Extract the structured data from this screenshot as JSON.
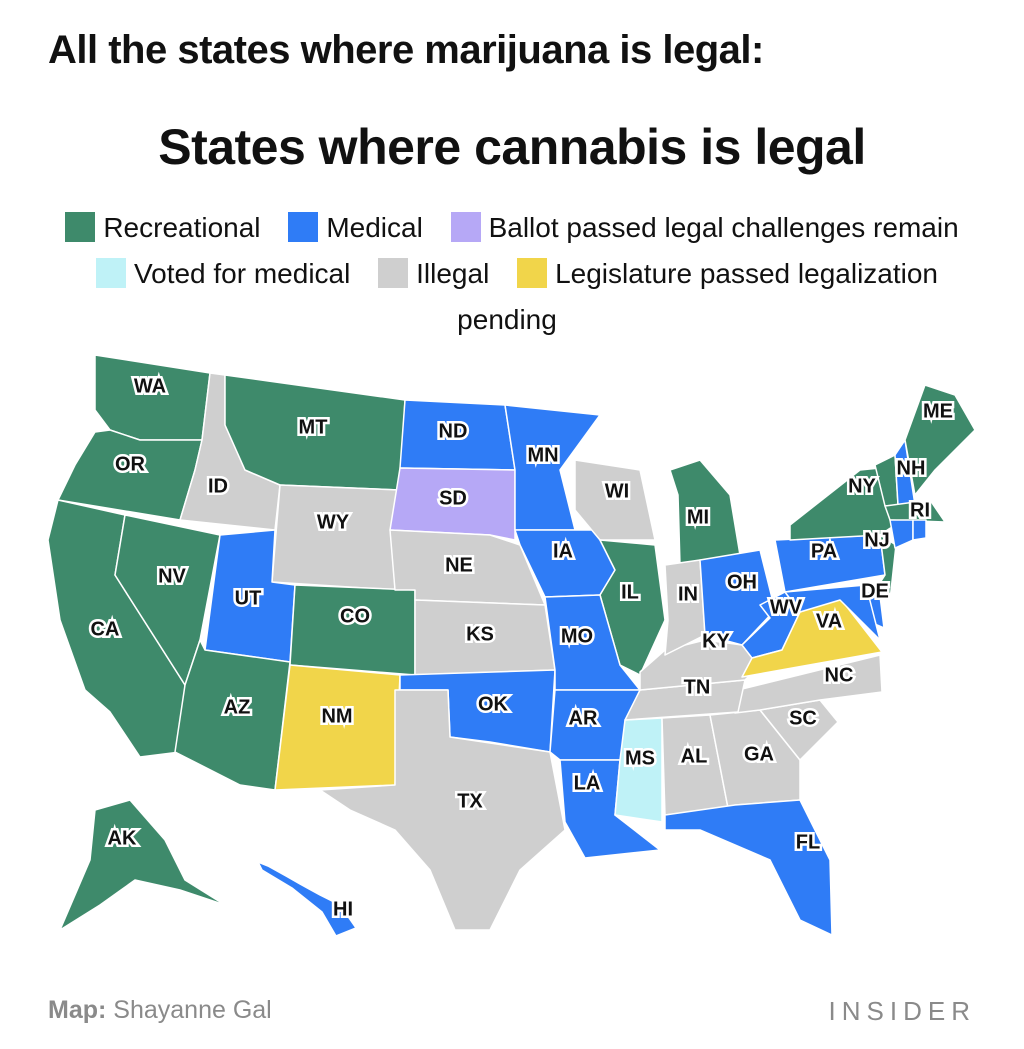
{
  "title": "All the states where marijuana is legal:",
  "subtitle": "States where cannabis is legal",
  "legend": [
    {
      "name": "Recreational",
      "color": "#3e8a6b"
    },
    {
      "name": "Medical",
      "color": "#2f7cf6"
    },
    {
      "name": "Ballot passed legal challenges remain",
      "color": "#b6a8f6"
    },
    {
      "name": "Voted for medical",
      "color": "#bff2f7"
    },
    {
      "name": "Illegal",
      "color": "#cfcfcf"
    },
    {
      "name": "Legislature passed legalization pending",
      "color": "#f1d54a"
    }
  ],
  "states": [
    {
      "label": "WA",
      "category": "Recreational"
    },
    {
      "label": "OR",
      "category": "Recreational"
    },
    {
      "label": "CA",
      "category": "Recreational"
    },
    {
      "label": "NV",
      "category": "Recreational"
    },
    {
      "label": "ID",
      "category": "Illegal"
    },
    {
      "label": "MT",
      "category": "Recreational"
    },
    {
      "label": "WY",
      "category": "Illegal"
    },
    {
      "label": "UT",
      "category": "Medical"
    },
    {
      "label": "CO",
      "category": "Recreational"
    },
    {
      "label": "AZ",
      "category": "Recreational"
    },
    {
      "label": "NM",
      "category": "Legislature passed legalization pending"
    },
    {
      "label": "ND",
      "category": "Medical"
    },
    {
      "label": "SD",
      "category": "Ballot passed legal challenges remain"
    },
    {
      "label": "NE",
      "category": "Illegal"
    },
    {
      "label": "KS",
      "category": "Illegal"
    },
    {
      "label": "OK",
      "category": "Medical"
    },
    {
      "label": "TX",
      "category": "Illegal"
    },
    {
      "label": "MN",
      "category": "Medical"
    },
    {
      "label": "IA",
      "category": "Medical"
    },
    {
      "label": "WI",
      "category": "Illegal"
    },
    {
      "label": "MI",
      "category": "Recreational"
    },
    {
      "label": "IL",
      "category": "Recreational"
    },
    {
      "label": "MO",
      "category": "Medical"
    },
    {
      "label": "AR",
      "category": "Medical"
    },
    {
      "label": "LA",
      "category": "Medical"
    },
    {
      "label": "MS",
      "category": "Voted for medical"
    },
    {
      "label": "AL",
      "category": "Illegal"
    },
    {
      "label": "GA",
      "category": "Illegal"
    },
    {
      "label": "FL",
      "category": "Medical"
    },
    {
      "label": "SC",
      "category": "Illegal"
    },
    {
      "label": "NC",
      "category": "Illegal"
    },
    {
      "label": "TN",
      "category": "Illegal"
    },
    {
      "label": "KY",
      "category": "Illegal"
    },
    {
      "label": "IN",
      "category": "Illegal"
    },
    {
      "label": "OH",
      "category": "Medical"
    },
    {
      "label": "WV",
      "category": "Medical"
    },
    {
      "label": "VA",
      "category": "Legislature passed legalization pending"
    },
    {
      "label": "PA",
      "category": "Medical"
    },
    {
      "label": "NY",
      "category": "Recreational"
    },
    {
      "label": "NJ",
      "category": "Recreational"
    },
    {
      "label": "DE",
      "category": "Medical"
    },
    {
      "label": null,
      "category": "Medical"
    },
    {
      "label": null,
      "category": "Recreational"
    },
    {
      "label": "NH",
      "category": "Medical"
    },
    {
      "label": "ME",
      "category": "Recreational"
    },
    {
      "label": null,
      "category": "Recreational"
    },
    {
      "label": null,
      "category": "Medical"
    },
    {
      "label": "RI",
      "category": "Medical"
    },
    {
      "label": "AK",
      "category": "Recreational"
    },
    {
      "label": "HI",
      "category": "Medical"
    }
  ],
  "credit_label": "Map:",
  "credit": "Shayanne Gal",
  "brand": "INSIDER"
}
